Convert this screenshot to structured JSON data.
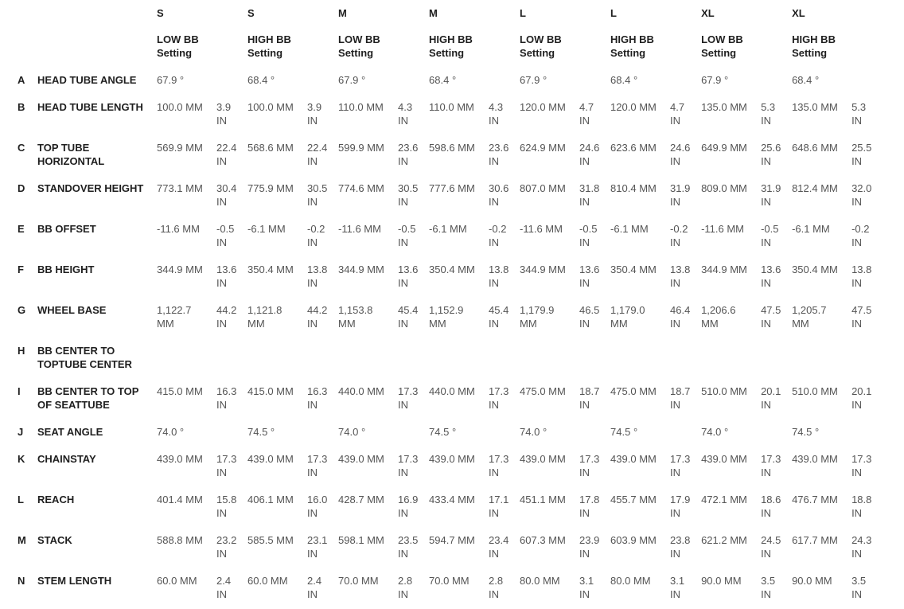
{
  "colors": {
    "background": "#ffffff",
    "heading_text": "#1f1f1f",
    "value_text": "#545454"
  },
  "chart_data": {
    "type": "table",
    "title": "",
    "metric_unit": "MM",
    "imperial_unit": "IN",
    "columns": [
      {
        "size": "S",
        "setting": "LOW BB Setting"
      },
      {
        "size": "S",
        "setting": "HIGH BB Setting"
      },
      {
        "size": "M",
        "setting": "LOW BB Setting"
      },
      {
        "size": "M",
        "setting": "HIGH BB Setting"
      },
      {
        "size": "L",
        "setting": "LOW BB Setting"
      },
      {
        "size": "L",
        "setting": "HIGH BB Setting"
      },
      {
        "size": "XL",
        "setting": "LOW BB Setting"
      },
      {
        "size": "XL",
        "setting": "HIGH BB Setting"
      }
    ],
    "rows": [
      {
        "key": "A",
        "label": "HEAD TUBE ANGLE",
        "cells": [
          [
            "67.9 °",
            ""
          ],
          [
            "68.4 °",
            ""
          ],
          [
            "67.9 °",
            ""
          ],
          [
            "68.4 °",
            ""
          ],
          [
            "67.9 °",
            ""
          ],
          [
            "68.4 °",
            ""
          ],
          [
            "67.9 °",
            ""
          ],
          [
            "68.4 °",
            ""
          ]
        ]
      },
      {
        "key": "B",
        "label": "HEAD TUBE LENGTH",
        "cells": [
          [
            "100.0 MM",
            "3.9 IN"
          ],
          [
            "100.0 MM",
            "3.9 IN"
          ],
          [
            "110.0 MM",
            "4.3 IN"
          ],
          [
            "110.0 MM",
            "4.3 IN"
          ],
          [
            "120.0 MM",
            "4.7 IN"
          ],
          [
            "120.0 MM",
            "4.7 IN"
          ],
          [
            "135.0 MM",
            "5.3 IN"
          ],
          [
            "135.0 MM",
            "5.3 IN"
          ]
        ]
      },
      {
        "key": "C",
        "label": "TOP TUBE HORIZONTAL",
        "cells": [
          [
            "569.9 MM",
            "22.4 IN"
          ],
          [
            "568.6 MM",
            "22.4 IN"
          ],
          [
            "599.9 MM",
            "23.6 IN"
          ],
          [
            "598.6 MM",
            "23.6 IN"
          ],
          [
            "624.9 MM",
            "24.6 IN"
          ],
          [
            "623.6 MM",
            "24.6 IN"
          ],
          [
            "649.9 MM",
            "25.6 IN"
          ],
          [
            "648.6 MM",
            "25.5 IN"
          ]
        ]
      },
      {
        "key": "D",
        "label": "STANDOVER HEIGHT",
        "cells": [
          [
            "773.1 MM",
            "30.4 IN"
          ],
          [
            "775.9 MM",
            "30.5 IN"
          ],
          [
            "774.6 MM",
            "30.5 IN"
          ],
          [
            "777.6 MM",
            "30.6 IN"
          ],
          [
            "807.0 MM",
            "31.8 IN"
          ],
          [
            "810.4 MM",
            "31.9 IN"
          ],
          [
            "809.0 MM",
            "31.9 IN"
          ],
          [
            "812.4 MM",
            "32.0 IN"
          ]
        ]
      },
      {
        "key": "E",
        "label": "BB OFFSET",
        "cells": [
          [
            "-11.6 MM",
            "-0.5 IN"
          ],
          [
            "-6.1 MM",
            "-0.2 IN"
          ],
          [
            "-11.6 MM",
            "-0.5 IN"
          ],
          [
            "-6.1 MM",
            "-0.2 IN"
          ],
          [
            "-11.6 MM",
            "-0.5 IN"
          ],
          [
            "-6.1 MM",
            "-0.2 IN"
          ],
          [
            "-11.6 MM",
            "-0.5 IN"
          ],
          [
            "-6.1 MM",
            "-0.2 IN"
          ]
        ]
      },
      {
        "key": "F",
        "label": "BB HEIGHT",
        "cells": [
          [
            "344.9 MM",
            "13.6 IN"
          ],
          [
            "350.4 MM",
            "13.8 IN"
          ],
          [
            "344.9 MM",
            "13.6 IN"
          ],
          [
            "350.4 MM",
            "13.8 IN"
          ],
          [
            "344.9 MM",
            "13.6 IN"
          ],
          [
            "350.4 MM",
            "13.8 IN"
          ],
          [
            "344.9 MM",
            "13.6 IN"
          ],
          [
            "350.4 MM",
            "13.8 IN"
          ]
        ]
      },
      {
        "key": "G",
        "label": "WHEEL BASE",
        "cells": [
          [
            "1,122.7 MM",
            "44.2 IN"
          ],
          [
            "1,121.8 MM",
            "44.2 IN"
          ],
          [
            "1,153.8 MM",
            "45.4 IN"
          ],
          [
            "1,152.9 MM",
            "45.4 IN"
          ],
          [
            "1,179.9 MM",
            "46.5 IN"
          ],
          [
            "1,179.0 MM",
            "46.4 IN"
          ],
          [
            "1,206.6 MM",
            "47.5 IN"
          ],
          [
            "1,205.7 MM",
            "47.5 IN"
          ]
        ]
      },
      {
        "key": "H",
        "label": "BB CENTER TO TOPTUBE CENTER",
        "cells": [
          [
            "",
            ""
          ],
          [
            "",
            ""
          ],
          [
            "",
            ""
          ],
          [
            "",
            ""
          ],
          [
            "",
            ""
          ],
          [
            "",
            ""
          ],
          [
            "",
            ""
          ],
          [
            "",
            ""
          ]
        ]
      },
      {
        "key": "I",
        "label": "BB CENTER TO TOP OF SEATTUBE",
        "cells": [
          [
            "415.0 MM",
            "16.3 IN"
          ],
          [
            "415.0 MM",
            "16.3 IN"
          ],
          [
            "440.0 MM",
            "17.3 IN"
          ],
          [
            "440.0 MM",
            "17.3 IN"
          ],
          [
            "475.0 MM",
            "18.7 IN"
          ],
          [
            "475.0 MM",
            "18.7 IN"
          ],
          [
            "510.0 MM",
            "20.1 IN"
          ],
          [
            "510.0 MM",
            "20.1 IN"
          ]
        ]
      },
      {
        "key": "J",
        "label": "SEAT ANGLE",
        "cells": [
          [
            "74.0 °",
            ""
          ],
          [
            "74.5 °",
            ""
          ],
          [
            "74.0 °",
            ""
          ],
          [
            "74.5 °",
            ""
          ],
          [
            "74.0 °",
            ""
          ],
          [
            "74.5 °",
            ""
          ],
          [
            "74.0 °",
            ""
          ],
          [
            "74.5 °",
            ""
          ]
        ]
      },
      {
        "key": "K",
        "label": "CHAINSTAY",
        "cells": [
          [
            "439.0 MM",
            "17.3 IN"
          ],
          [
            "439.0 MM",
            "17.3 IN"
          ],
          [
            "439.0 MM",
            "17.3 IN"
          ],
          [
            "439.0 MM",
            "17.3 IN"
          ],
          [
            "439.0 MM",
            "17.3 IN"
          ],
          [
            "439.0 MM",
            "17.3 IN"
          ],
          [
            "439.0 MM",
            "17.3 IN"
          ],
          [
            "439.0 MM",
            "17.3 IN"
          ]
        ]
      },
      {
        "key": "L",
        "label": "REACH",
        "cells": [
          [
            "401.4 MM",
            "15.8 IN"
          ],
          [
            "406.1 MM",
            "16.0 IN"
          ],
          [
            "428.7 MM",
            "16.9 IN"
          ],
          [
            "433.4 MM",
            "17.1 IN"
          ],
          [
            "451.1 MM",
            "17.8 IN"
          ],
          [
            "455.7 MM",
            "17.9 IN"
          ],
          [
            "472.1 MM",
            "18.6 IN"
          ],
          [
            "476.7 MM",
            "18.8 IN"
          ]
        ]
      },
      {
        "key": "M",
        "label": "STACK",
        "cells": [
          [
            "588.8 MM",
            "23.2 IN"
          ],
          [
            "585.5 MM",
            "23.1 IN"
          ],
          [
            "598.1 MM",
            "23.5 IN"
          ],
          [
            "594.7 MM",
            "23.4 IN"
          ],
          [
            "607.3 MM",
            "23.9 IN"
          ],
          [
            "603.9 MM",
            "23.8 IN"
          ],
          [
            "621.2 MM",
            "24.5 IN"
          ],
          [
            "617.7 MM",
            "24.3 IN"
          ]
        ]
      },
      {
        "key": "N",
        "label": "STEM LENGTH",
        "cells": [
          [
            "60.0 MM",
            "2.4 IN"
          ],
          [
            "60.0 MM",
            "2.4 IN"
          ],
          [
            "70.0 MM",
            "2.8 IN"
          ],
          [
            "70.0 MM",
            "2.8 IN"
          ],
          [
            "80.0 MM",
            "3.1 IN"
          ],
          [
            "80.0 MM",
            "3.1 IN"
          ],
          [
            "90.0 MM",
            "3.5 IN"
          ],
          [
            "90.0 MM",
            "3.5 IN"
          ]
        ]
      }
    ]
  }
}
